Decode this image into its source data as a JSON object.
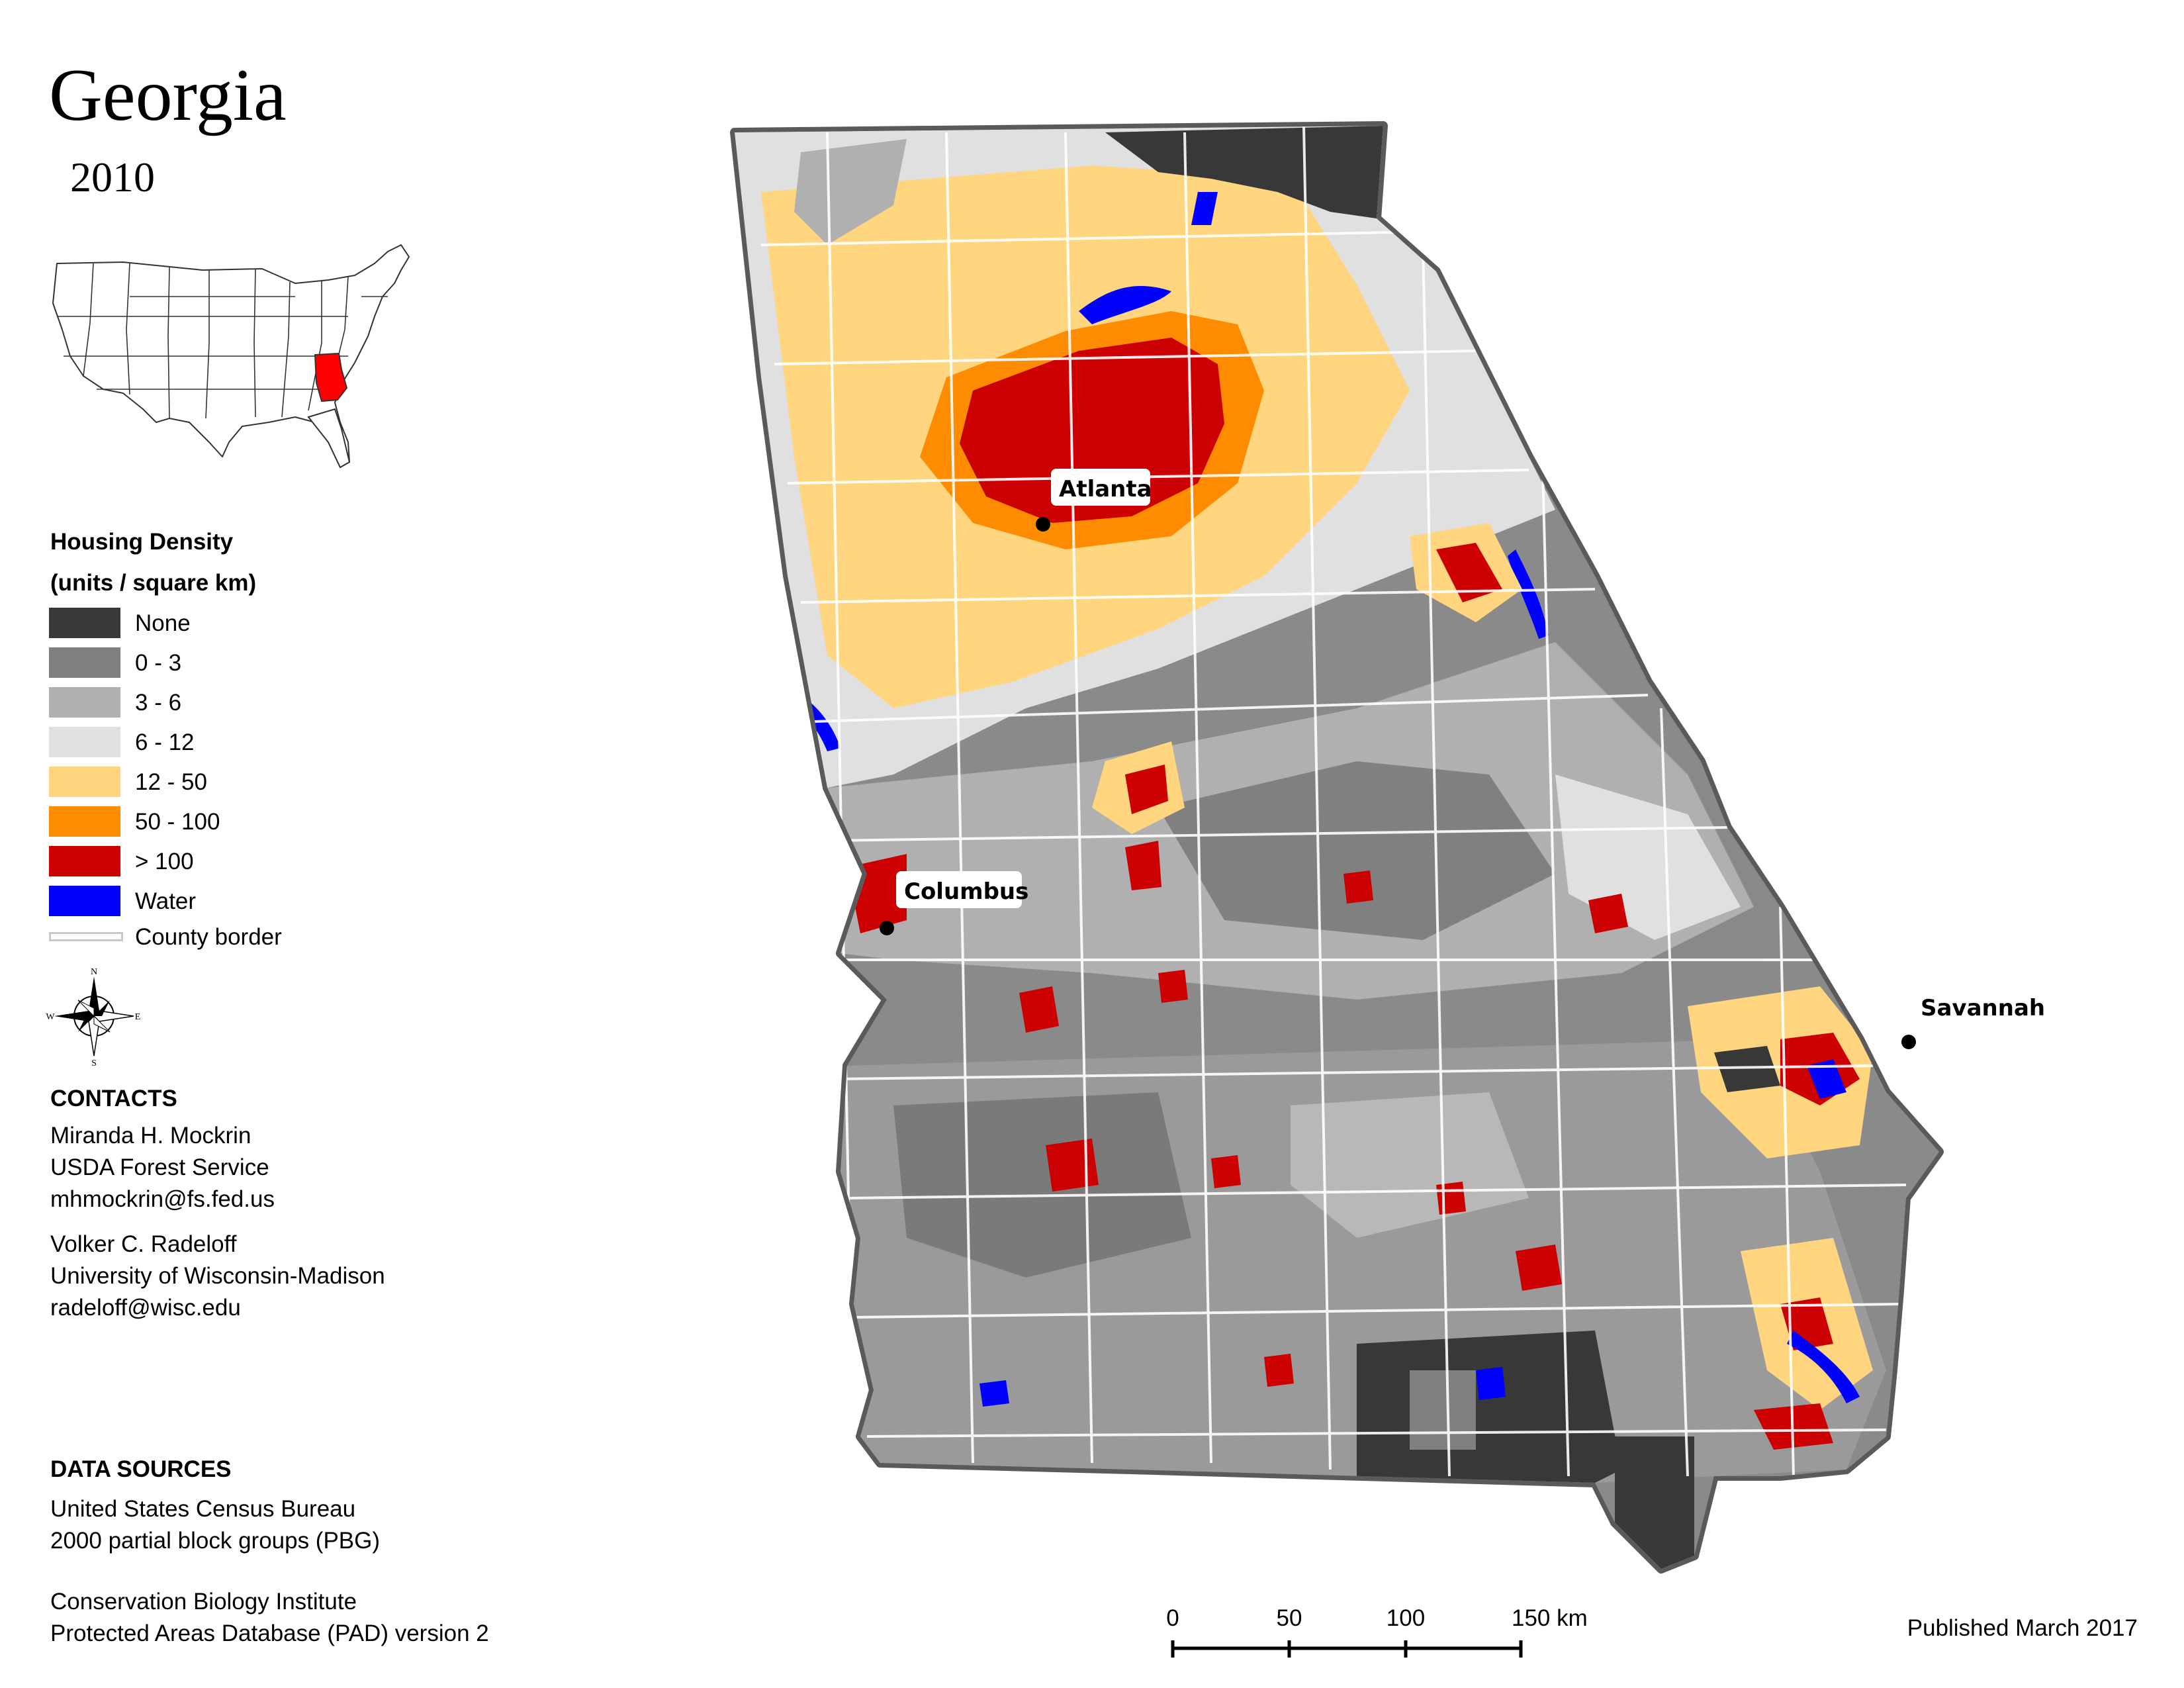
{
  "header": {
    "title": "Georgia",
    "year": "2010"
  },
  "legend": {
    "title_line1": "Housing Density",
    "title_line2": "(units / square km)",
    "items": [
      {
        "label": "None",
        "color": "#383838"
      },
      {
        "label": "0 - 3",
        "color": "#808080"
      },
      {
        "label": "3 - 6",
        "color": "#b0b0b0"
      },
      {
        "label": "6 - 12",
        "color": "#e0e0e0"
      },
      {
        "label": "12 - 50",
        "color": "#ffd580"
      },
      {
        "label": "50 - 100",
        "color": "#ff8c00"
      },
      {
        "label": "> 100",
        "color": "#cc0000"
      },
      {
        "label": "Water",
        "color": "#0000ff"
      }
    ],
    "county_border_label": "County border"
  },
  "compass": {
    "n": "N",
    "s": "S",
    "e": "E",
    "w": "W"
  },
  "contacts": {
    "heading": "CONTACTS",
    "person1": [
      "Miranda H. Mockrin",
      "USDA Forest Service",
      "mhmockrin@fs.fed.us"
    ],
    "person2": [
      "Volker C. Radeloff",
      "University of Wisconsin-Madison",
      "radeloff@wisc.edu"
    ]
  },
  "data_sources": {
    "heading": "DATA SOURCES",
    "source1": [
      "United States Census Bureau",
      "2000 partial block groups (PBG)"
    ],
    "source2": [
      "Conservation Biology Institute",
      "Protected Areas Database (PAD) version 2"
    ]
  },
  "map": {
    "cities": [
      {
        "name": "Atlanta"
      },
      {
        "name": "Columbus"
      },
      {
        "name": "Savannah"
      }
    ],
    "inset_highlight_color": "#ff0000"
  },
  "scale": {
    "ticks": [
      "0",
      "50",
      "100",
      "150 km"
    ]
  },
  "footer": {
    "published": "Published March 2017"
  }
}
